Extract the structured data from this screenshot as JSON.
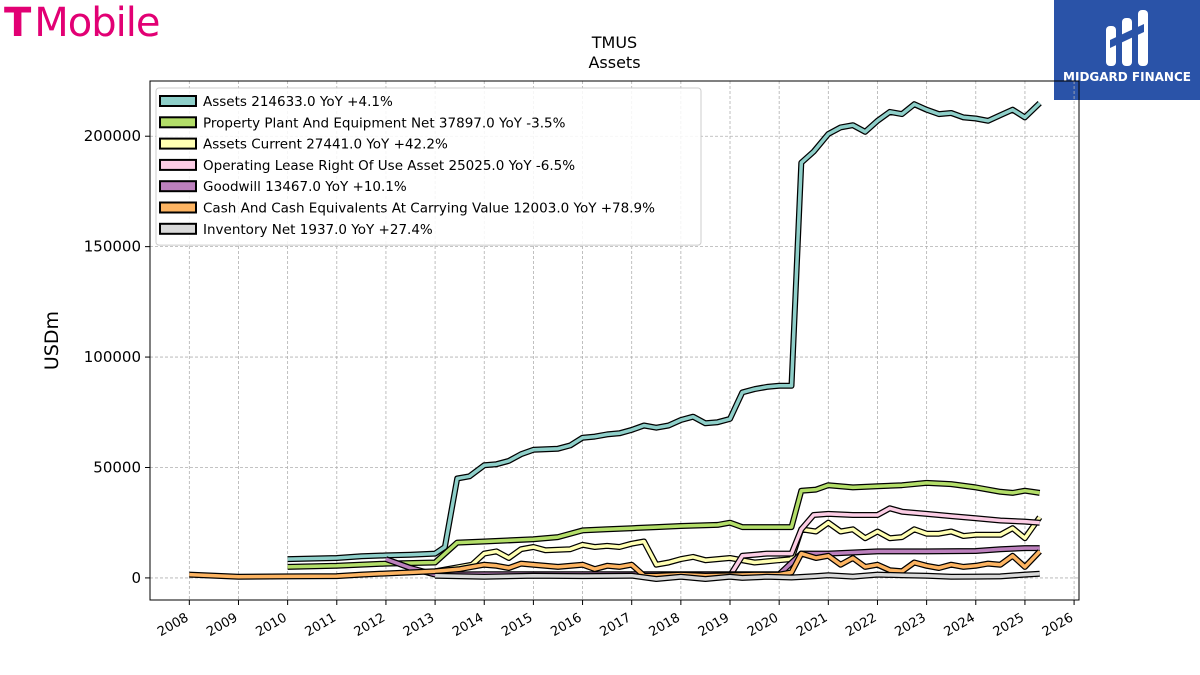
{
  "brand": {
    "logo_mark": "T",
    "logo_text": "Mobile",
    "logo_color": "#e20074"
  },
  "partner": {
    "name": "MIDGARD FINANCE",
    "bg_color": "#2a53a8"
  },
  "chart_data": {
    "type": "line",
    "title": "TMUS",
    "subtitle": "Assets",
    "xlabel": "",
    "ylabel": "USDm",
    "xlim": [
      2007.2,
      2026.1
    ],
    "ylim": [
      -10000,
      225000
    ],
    "x_ticks": [
      2008,
      2009,
      2010,
      2011,
      2012,
      2013,
      2014,
      2015,
      2016,
      2017,
      2018,
      2019,
      2020,
      2021,
      2022,
      2023,
      2024,
      2025,
      2026
    ],
    "y_ticks": [
      0,
      50000,
      100000,
      150000,
      200000
    ],
    "grid": true,
    "legend_position": "top-left",
    "series": [
      {
        "name": "Assets  214633.0 YoY +4.1%",
        "color": "#8ecfc9",
        "points": [
          [
            2010,
            8500
          ],
          [
            2011,
            9000
          ],
          [
            2011.5,
            9800
          ],
          [
            2012,
            10200
          ],
          [
            2012.5,
            10500
          ],
          [
            2013,
            11000
          ],
          [
            2013.2,
            14000
          ],
          [
            2013.45,
            45000
          ],
          [
            2013.7,
            46000
          ],
          [
            2014,
            51000
          ],
          [
            2014.25,
            51500
          ],
          [
            2014.5,
            53000
          ],
          [
            2014.75,
            56000
          ],
          [
            2015,
            58000
          ],
          [
            2015.5,
            58500
          ],
          [
            2015.75,
            60000
          ],
          [
            2016,
            63500
          ],
          [
            2016.25,
            64000
          ],
          [
            2016.5,
            65000
          ],
          [
            2016.75,
            65500
          ],
          [
            2017,
            67000
          ],
          [
            2017.25,
            69000
          ],
          [
            2017.5,
            68000
          ],
          [
            2017.75,
            69000
          ],
          [
            2018,
            71500
          ],
          [
            2018.25,
            73000
          ],
          [
            2018.5,
            70000
          ],
          [
            2018.75,
            70500
          ],
          [
            2019,
            72000
          ],
          [
            2019.25,
            84000
          ],
          [
            2019.5,
            85500
          ],
          [
            2019.75,
            86500
          ],
          [
            2020,
            87000
          ],
          [
            2020.25,
            87000
          ],
          [
            2020.45,
            188000
          ],
          [
            2020.7,
            193000
          ],
          [
            2021,
            201000
          ],
          [
            2021.25,
            204000
          ],
          [
            2021.5,
            205000
          ],
          [
            2021.75,
            202000
          ],
          [
            2022,
            207000
          ],
          [
            2022.25,
            211000
          ],
          [
            2022.5,
            210000
          ],
          [
            2022.75,
            214500
          ],
          [
            2023,
            212000
          ],
          [
            2023.25,
            210000
          ],
          [
            2023.5,
            210500
          ],
          [
            2023.75,
            208500
          ],
          [
            2024,
            208000
          ],
          [
            2024.25,
            207000
          ],
          [
            2024.5,
            209500
          ],
          [
            2024.75,
            212000
          ],
          [
            2025,
            208500
          ],
          [
            2025.3,
            215000
          ]
        ]
      },
      {
        "name": "Property Plant And Equipment Net  37897.0 YoY -3.5%",
        "color": "#b3de69",
        "points": [
          [
            2010,
            5000
          ],
          [
            2011,
            5500
          ],
          [
            2012,
            6500
          ],
          [
            2013,
            7000
          ],
          [
            2013.45,
            16000
          ],
          [
            2014,
            16500
          ],
          [
            2015,
            17500
          ],
          [
            2015.5,
            18500
          ],
          [
            2016,
            21500
          ],
          [
            2016.5,
            22000
          ],
          [
            2017,
            22500
          ],
          [
            2017.5,
            23000
          ],
          [
            2018,
            23500
          ],
          [
            2018.75,
            24000
          ],
          [
            2019,
            25000
          ],
          [
            2019.25,
            23000
          ],
          [
            2019.75,
            23000
          ],
          [
            2020.25,
            23000
          ],
          [
            2020.45,
            39500
          ],
          [
            2020.75,
            40000
          ],
          [
            2021,
            42000
          ],
          [
            2021.5,
            41000
          ],
          [
            2022,
            41500
          ],
          [
            2022.5,
            42000
          ],
          [
            2023,
            43000
          ],
          [
            2023.5,
            42500
          ],
          [
            2024,
            41000
          ],
          [
            2024.5,
            39000
          ],
          [
            2024.75,
            38500
          ],
          [
            2025,
            39500
          ],
          [
            2025.3,
            38500
          ]
        ]
      },
      {
        "name": "Assets Current  27441.0 YoY +42.2%",
        "color": "#ffffb3",
        "points": [
          [
            2013,
            3000
          ],
          [
            2013.5,
            5000
          ],
          [
            2013.75,
            6000
          ],
          [
            2014,
            11000
          ],
          [
            2014.25,
            12000
          ],
          [
            2014.5,
            9000
          ],
          [
            2014.75,
            13000
          ],
          [
            2015,
            14000
          ],
          [
            2015.25,
            12500
          ],
          [
            2015.75,
            13000
          ],
          [
            2016,
            15000
          ],
          [
            2016.25,
            14000
          ],
          [
            2016.5,
            14500
          ],
          [
            2016.75,
            14000
          ],
          [
            2017,
            15500
          ],
          [
            2017.25,
            16500
          ],
          [
            2017.5,
            6000
          ],
          [
            2017.75,
            7000
          ],
          [
            2018,
            8500
          ],
          [
            2018.25,
            9500
          ],
          [
            2018.5,
            8000
          ],
          [
            2018.75,
            8500
          ],
          [
            2019,
            9000
          ],
          [
            2019.5,
            7000
          ],
          [
            2020,
            8000
          ],
          [
            2020.25,
            8500
          ],
          [
            2020.45,
            22000
          ],
          [
            2020.75,
            21000
          ],
          [
            2021,
            25000
          ],
          [
            2021.25,
            21000
          ],
          [
            2021.5,
            22000
          ],
          [
            2021.75,
            18000
          ],
          [
            2022,
            21000
          ],
          [
            2022.25,
            18000
          ],
          [
            2022.5,
            18500
          ],
          [
            2022.75,
            22000
          ],
          [
            2023,
            20000
          ],
          [
            2023.25,
            20000
          ],
          [
            2023.5,
            21000
          ],
          [
            2023.75,
            19000
          ],
          [
            2024,
            19500
          ],
          [
            2024.5,
            19500
          ],
          [
            2024.75,
            22500
          ],
          [
            2025,
            18000
          ],
          [
            2025.3,
            27500
          ]
        ]
      },
      {
        "name": "Operating Lease Right Of Use Asset  25025.0 YoY -6.5%",
        "color": "#fccde5",
        "points": [
          [
            2019,
            1000
          ],
          [
            2019.25,
            10000
          ],
          [
            2019.5,
            10500
          ],
          [
            2019.75,
            11000
          ],
          [
            2020.25,
            11000
          ],
          [
            2020.45,
            22000
          ],
          [
            2020.7,
            28500
          ],
          [
            2021,
            29000
          ],
          [
            2021.5,
            28500
          ],
          [
            2022,
            28500
          ],
          [
            2022.25,
            31500
          ],
          [
            2022.5,
            30000
          ],
          [
            2023,
            29000
          ],
          [
            2023.5,
            28000
          ],
          [
            2024,
            27000
          ],
          [
            2024.5,
            26000
          ],
          [
            2025,
            25500
          ],
          [
            2025.3,
            25000
          ]
        ]
      },
      {
        "name": "Goodwill  13467.0 YoY +10.1%",
        "color": "#bc80bd",
        "points": [
          [
            2012,
            8500
          ],
          [
            2012.5,
            4500
          ],
          [
            2013,
            1500
          ],
          [
            2013.5,
            1600
          ],
          [
            2014,
            1700
          ],
          [
            2015,
            1700
          ],
          [
            2016,
            1700
          ],
          [
            2017,
            1700
          ],
          [
            2018,
            1700
          ],
          [
            2019,
            1700
          ],
          [
            2020,
            1700
          ],
          [
            2020.45,
            11000
          ],
          [
            2021,
            11000
          ],
          [
            2021.5,
            11500
          ],
          [
            2022,
            12000
          ],
          [
            2023,
            12000
          ],
          [
            2024,
            12200
          ],
          [
            2024.5,
            13000
          ],
          [
            2025,
            13500
          ],
          [
            2025.3,
            13500
          ]
        ]
      },
      {
        "name": "Cash And Cash Equivalents At Carrying Value  12003.0 YoY +78.9%",
        "color": "#fdb462",
        "points": [
          [
            2008,
            1500
          ],
          [
            2009,
            500
          ],
          [
            2010,
            700
          ],
          [
            2011,
            800
          ],
          [
            2011.5,
            1500
          ],
          [
            2012,
            2000
          ],
          [
            2012.5,
            2500
          ],
          [
            2013,
            3000
          ],
          [
            2013.5,
            4000
          ],
          [
            2014,
            6000
          ],
          [
            2014.25,
            5500
          ],
          [
            2014.5,
            4500
          ],
          [
            2014.75,
            6500
          ],
          [
            2015,
            6000
          ],
          [
            2015.5,
            5000
          ],
          [
            2016,
            6000
          ],
          [
            2016.25,
            4000
          ],
          [
            2016.5,
            5500
          ],
          [
            2016.75,
            5000
          ],
          [
            2017,
            6000
          ],
          [
            2017.25,
            1000
          ],
          [
            2017.5,
            1000
          ],
          [
            2018,
            1500
          ],
          [
            2018.5,
            1000
          ],
          [
            2019,
            1200
          ],
          [
            2019.5,
            1500
          ],
          [
            2020,
            1500
          ],
          [
            2020.25,
            2500
          ],
          [
            2020.45,
            11000
          ],
          [
            2020.75,
            9000
          ],
          [
            2021,
            10000
          ],
          [
            2021.25,
            6000
          ],
          [
            2021.5,
            9000
          ],
          [
            2021.75,
            5000
          ],
          [
            2022,
            6000
          ],
          [
            2022.25,
            3500
          ],
          [
            2022.5,
            3000
          ],
          [
            2022.75,
            7000
          ],
          [
            2023,
            5500
          ],
          [
            2023.25,
            4500
          ],
          [
            2023.5,
            6000
          ],
          [
            2023.75,
            5000
          ],
          [
            2024,
            5500
          ],
          [
            2024.25,
            6500
          ],
          [
            2024.5,
            6000
          ],
          [
            2024.75,
            10000
          ],
          [
            2025,
            5000
          ],
          [
            2025.3,
            12000
          ]
        ]
      },
      {
        "name": "Inventory Net  1937.0 YoY +27.4%",
        "color": "#d9d9d9",
        "points": [
          [
            2013,
            1000
          ],
          [
            2014,
            500
          ],
          [
            2015,
            1000
          ],
          [
            2016,
            800
          ],
          [
            2017,
            1000
          ],
          [
            2017.5,
            -500
          ],
          [
            2018,
            500
          ],
          [
            2018.5,
            -500
          ],
          [
            2019,
            500
          ],
          [
            2019.25,
            0
          ],
          [
            2019.75,
            500
          ],
          [
            2020.25,
            200
          ],
          [
            2020.75,
            800
          ],
          [
            2021,
            1200
          ],
          [
            2021.5,
            600
          ],
          [
            2022,
            1500
          ],
          [
            2022.5,
            1200
          ],
          [
            2023,
            1000
          ],
          [
            2023.5,
            500
          ],
          [
            2024,
            600
          ],
          [
            2024.5,
            700
          ],
          [
            2025,
            1500
          ],
          [
            2025.3,
            1900
          ]
        ]
      }
    ]
  }
}
